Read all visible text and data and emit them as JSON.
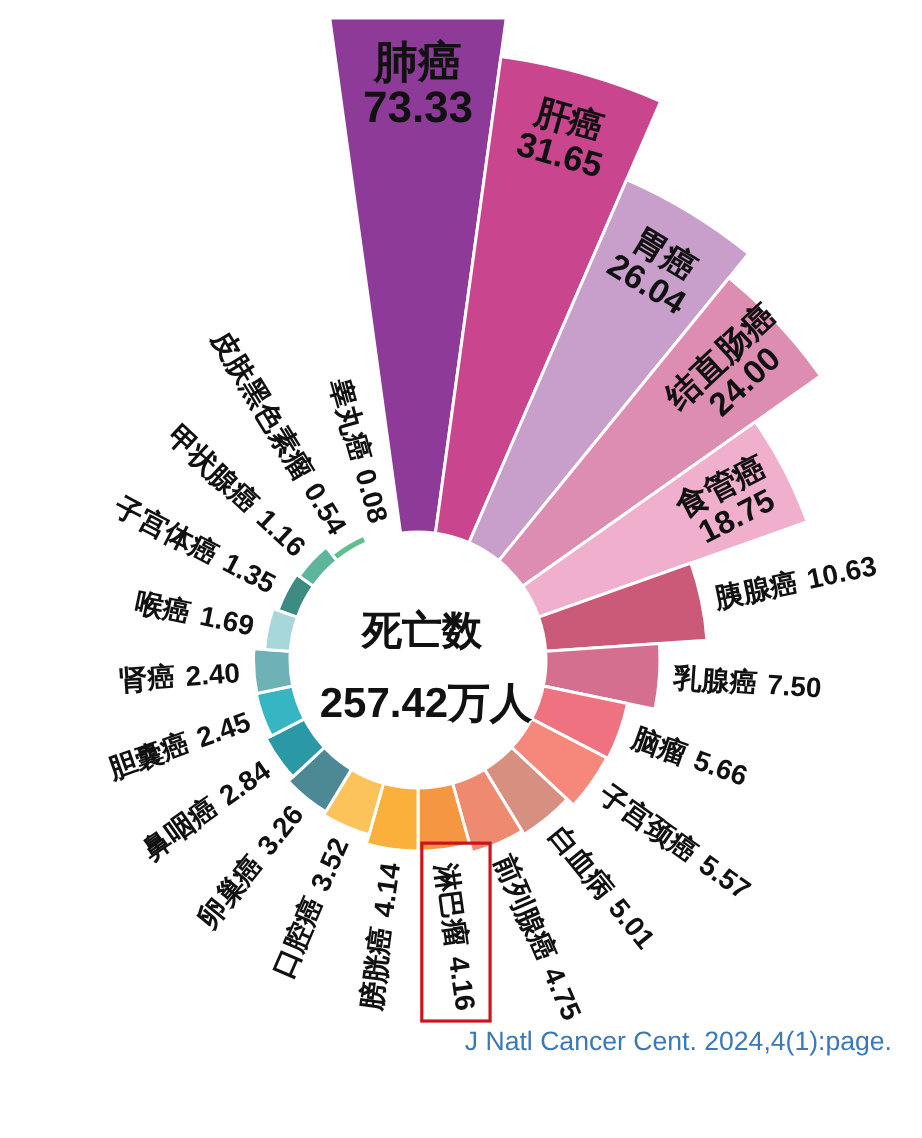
{
  "chart_data": {
    "type": "other",
    "title": "死亡数",
    "subtitle": "257.42万人",
    "categories": [
      "肺癌",
      "肝癌",
      "胃癌",
      "结直肠癌",
      "食管癌",
      "胰腺癌",
      "乳腺癌",
      "脑瘤",
      "子宫颈癌",
      "白血病",
      "前列腺癌",
      "淋巴瘤",
      "膀胱癌",
      "口腔癌",
      "卵巢癌",
      "鼻咽癌",
      "胆囊癌",
      "肾癌",
      "喉癌",
      "子宫体癌",
      "甲状腺癌",
      "皮肤黑色素瘤",
      "睾丸癌"
    ],
    "values": [
      73.33,
      31.65,
      26.04,
      24.0,
      18.75,
      10.63,
      7.5,
      5.66,
      5.57,
      5.01,
      4.75,
      4.16,
      4.14,
      3.52,
      3.26,
      2.84,
      2.45,
      2.4,
      1.69,
      1.35,
      1.16,
      0.54,
      0.08
    ],
    "value_labels": [
      "73.33",
      "31.65",
      "26.04",
      "24.00",
      "18.75",
      "10.63",
      "7.50",
      "5.66",
      "5.57",
      "5.01",
      "4.75",
      "4.16",
      "4.14",
      "3.52",
      "3.26",
      "2.84",
      "2.45",
      "2.40",
      "1.69",
      "1.35",
      "1.16",
      "0.54",
      "0.08"
    ],
    "colors": [
      "#8d3a98",
      "#c9468f",
      "#c89fcb",
      "#dc8db1",
      "#f0b0cd",
      "#cb5a79",
      "#d56f8f",
      "#ef7280",
      "#f5887a",
      "#d7907f",
      "#ee8a6f",
      "#f59640",
      "#fbb03c",
      "#fcc35b",
      "#4d8994",
      "#2b99a5",
      "#37b5c3",
      "#6fb2b5",
      "#a8d7db",
      "#3d8a80",
      "#5db69b",
      "#5fbf8f",
      "#5cc07f"
    ],
    "annotations": [
      "J Natl Cancer Cent. 2024,4(1):page."
    ]
  }
}
